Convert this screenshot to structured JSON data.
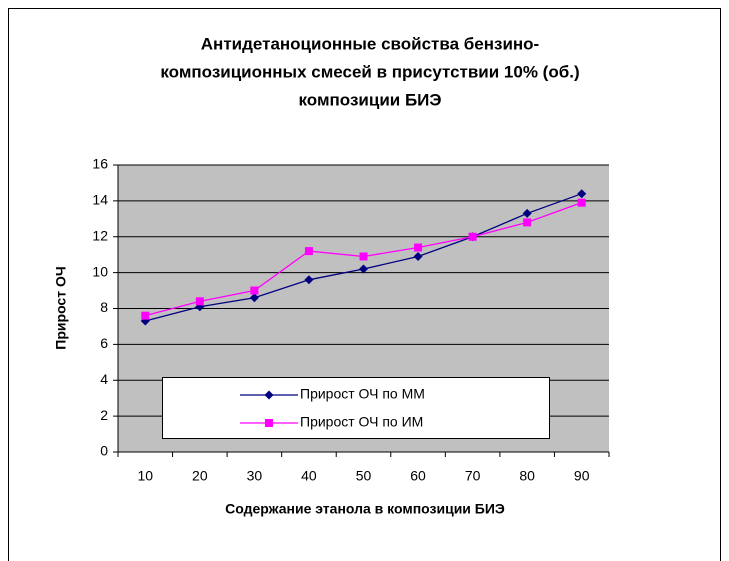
{
  "chart_data": {
    "type": "line",
    "title": [
      "Антидетаноционные свойства бензино-",
      "композиционных смесей  в присутствии 10% (об.)",
      "композиции БИЭ"
    ],
    "x_label": "Содержание этанола в композиции БИЭ",
    "y_label": "Прирост ОЧ",
    "categories": [
      "10",
      "20",
      "30",
      "40",
      "50",
      "60",
      "70",
      "80",
      "90"
    ],
    "series": [
      {
        "name": "Прирост ОЧ по ММ",
        "color": "#000080",
        "marker": "diamond",
        "values": [
          7.3,
          8.1,
          8.6,
          9.6,
          10.2,
          10.9,
          12.0,
          13.3,
          14.4
        ]
      },
      {
        "name": "Прирост ОЧ по ИМ",
        "color": "#ff00ff",
        "marker": "square",
        "values": [
          7.6,
          8.4,
          9.0,
          11.2,
          10.9,
          11.4,
          12.0,
          12.8,
          13.9
        ]
      }
    ],
    "ylim": [
      0,
      16
    ],
    "yticks": [
      0,
      2,
      4,
      6,
      8,
      10,
      12,
      14,
      16
    ],
    "grid": true
  }
}
